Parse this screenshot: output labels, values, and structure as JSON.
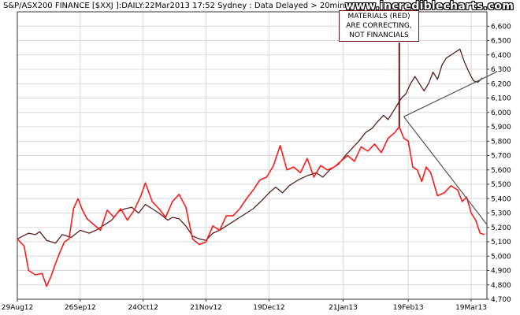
{
  "header": {
    "title": "S&P/ASX200 FINANCE [$XXJ ]:DAILY:22Mar2013 17:52 Sydney : Data Delayed > 20mins",
    "site": "www.incrediblecharts.com"
  },
  "annotation": {
    "lines": [
      "MATERIALS (RED)",
      "ARE CORRECTING,",
      "NOT FINANCIALS"
    ]
  },
  "chart_data": {
    "type": "line",
    "ylim": [
      4700,
      6700
    ],
    "yticks": [
      4700,
      4800,
      4900,
      5000,
      5100,
      5200,
      5300,
      5400,
      5500,
      5600,
      5700,
      5800,
      5900,
      6000,
      6100,
      6200,
      6300,
      6400,
      6500,
      6600
    ],
    "ytick_labels": [
      "4,700",
      "4,800",
      "4,900",
      "5,000",
      "5,100",
      "5,200",
      "5,300",
      "5,400",
      "5,500",
      "5,600",
      "5,700",
      "5,800",
      "5,900",
      "6,000",
      "6,100",
      "6,200",
      "6,300",
      "6,400",
      "6,500",
      "6,600"
    ],
    "xticks": [
      "29Aug12",
      "26Sep12",
      "24Oct12",
      "21Nov12",
      "19Dec12",
      "21Jan13",
      "19Feb13",
      "19Mar13"
    ],
    "xlim": [
      "2012-08-29",
      "2013-03-26"
    ],
    "grid": true,
    "colors": {
      "financials": "#5a2020",
      "materials": "#ff1a1a",
      "trendlines": "#555555",
      "callout_border": "#6b1a1a"
    },
    "series": [
      {
        "key": "financials",
        "points": [
          [
            "2012-08-29",
            5120
          ],
          [
            "2012-09-03",
            5160
          ],
          [
            "2012-09-06",
            5150
          ],
          [
            "2012-09-08",
            5170
          ],
          [
            "2012-09-11",
            5110
          ],
          [
            "2012-09-15",
            5090
          ],
          [
            "2012-09-18",
            5150
          ],
          [
            "2012-09-22",
            5130
          ],
          [
            "2012-09-26",
            5180
          ],
          [
            "2012-09-30",
            5160
          ],
          [
            "2012-10-03",
            5180
          ],
          [
            "2012-10-07",
            5220
          ],
          [
            "2012-10-10",
            5250
          ],
          [
            "2012-10-13",
            5310
          ],
          [
            "2012-10-16",
            5330
          ],
          [
            "2012-10-19",
            5340
          ],
          [
            "2012-10-22",
            5300
          ],
          [
            "2012-10-25",
            5360
          ],
          [
            "2012-10-28",
            5330
          ],
          [
            "2012-10-31",
            5300
          ],
          [
            "2012-11-04",
            5250
          ],
          [
            "2012-11-06",
            5270
          ],
          [
            "2012-11-09",
            5260
          ],
          [
            "2012-11-12",
            5210
          ],
          [
            "2012-11-15",
            5140
          ],
          [
            "2012-11-18",
            5120
          ],
          [
            "2012-11-21",
            5110
          ],
          [
            "2012-11-24",
            5160
          ],
          [
            "2012-11-27",
            5180
          ],
          [
            "2012-11-30",
            5210
          ],
          [
            "2012-12-03",
            5240
          ],
          [
            "2012-12-06",
            5270
          ],
          [
            "2012-12-09",
            5300
          ],
          [
            "2012-12-12",
            5330
          ],
          [
            "2012-12-16",
            5390
          ],
          [
            "2012-12-19",
            5440
          ],
          [
            "2012-12-22",
            5480
          ],
          [
            "2012-12-25",
            5440
          ],
          [
            "2012-12-28",
            5490
          ],
          [
            "2013-01-01",
            5530
          ],
          [
            "2013-01-05",
            5560
          ],
          [
            "2013-01-09",
            5580
          ],
          [
            "2013-01-12",
            5550
          ],
          [
            "2013-01-15",
            5600
          ],
          [
            "2013-01-19",
            5640
          ],
          [
            "2013-01-22",
            5700
          ],
          [
            "2013-01-25",
            5750
          ],
          [
            "2013-01-28",
            5800
          ],
          [
            "2013-01-31",
            5860
          ],
          [
            "2013-02-03",
            5890
          ],
          [
            "2013-02-05",
            5930
          ],
          [
            "2013-02-08",
            5980
          ],
          [
            "2013-02-10",
            5950
          ],
          [
            "2013-02-12",
            6000
          ],
          [
            "2013-02-14",
            6050
          ],
          [
            "2013-02-16",
            6100
          ],
          [
            "2013-02-18",
            6130
          ],
          [
            "2013-02-20",
            6200
          ],
          [
            "2013-02-22",
            6250
          ],
          [
            "2013-02-24",
            6200
          ],
          [
            "2013-02-26",
            6150
          ],
          [
            "2013-02-28",
            6200
          ],
          [
            "2013-03-02",
            6280
          ],
          [
            "2013-03-04",
            6230
          ],
          [
            "2013-03-06",
            6330
          ],
          [
            "2013-03-08",
            6380
          ],
          [
            "2013-03-10",
            6400
          ],
          [
            "2013-03-12",
            6420
          ],
          [
            "2013-03-14",
            6440
          ],
          [
            "2013-03-16",
            6350
          ],
          [
            "2013-03-18",
            6280
          ],
          [
            "2013-03-20",
            6220
          ],
          [
            "2013-03-22",
            6210
          ],
          [
            "2013-03-24",
            6240
          ]
        ]
      },
      {
        "key": "materials",
        "points": [
          [
            "2012-08-29",
            5120
          ],
          [
            "2012-09-01",
            5070
          ],
          [
            "2012-09-03",
            4900
          ],
          [
            "2012-09-06",
            4870
          ],
          [
            "2012-09-09",
            4880
          ],
          [
            "2012-09-11",
            4790
          ],
          [
            "2012-09-13",
            4860
          ],
          [
            "2012-09-15",
            4950
          ],
          [
            "2012-09-17",
            5030
          ],
          [
            "2012-09-19",
            5100
          ],
          [
            "2012-09-21",
            5120
          ],
          [
            "2012-09-23",
            5330
          ],
          [
            "2012-09-25",
            5400
          ],
          [
            "2012-09-27",
            5320
          ],
          [
            "2012-09-29",
            5260
          ],
          [
            "2012-10-02",
            5220
          ],
          [
            "2012-10-05",
            5180
          ],
          [
            "2012-10-08",
            5320
          ],
          [
            "2012-10-11",
            5270
          ],
          [
            "2012-10-14",
            5330
          ],
          [
            "2012-10-17",
            5250
          ],
          [
            "2012-10-20",
            5320
          ],
          [
            "2012-10-23",
            5420
          ],
          [
            "2012-10-25",
            5510
          ],
          [
            "2012-10-28",
            5380
          ],
          [
            "2012-10-31",
            5330
          ],
          [
            "2012-11-03",
            5270
          ],
          [
            "2012-11-06",
            5380
          ],
          [
            "2012-11-09",
            5430
          ],
          [
            "2012-11-12",
            5340
          ],
          [
            "2012-11-15",
            5120
          ],
          [
            "2012-11-18",
            5080
          ],
          [
            "2012-11-21",
            5100
          ],
          [
            "2012-11-24",
            5210
          ],
          [
            "2012-11-27",
            5180
          ],
          [
            "2012-11-30",
            5280
          ],
          [
            "2012-12-03",
            5280
          ],
          [
            "2012-12-06",
            5330
          ],
          [
            "2012-12-09",
            5400
          ],
          [
            "2012-12-12",
            5460
          ],
          [
            "2012-12-15",
            5530
          ],
          [
            "2012-12-18",
            5550
          ],
          [
            "2012-12-21",
            5630
          ],
          [
            "2012-12-24",
            5770
          ],
          [
            "2012-12-27",
            5600
          ],
          [
            "2012-12-30",
            5620
          ],
          [
            "2013-01-02",
            5580
          ],
          [
            "2013-01-05",
            5680
          ],
          [
            "2013-01-08",
            5550
          ],
          [
            "2013-01-11",
            5630
          ],
          [
            "2013-01-14",
            5600
          ],
          [
            "2013-01-17",
            5620
          ],
          [
            "2013-01-20",
            5660
          ],
          [
            "2013-01-23",
            5700
          ],
          [
            "2013-01-26",
            5660
          ],
          [
            "2013-01-29",
            5760
          ],
          [
            "2013-02-01",
            5730
          ],
          [
            "2013-02-04",
            5780
          ],
          [
            "2013-02-07",
            5720
          ],
          [
            "2013-02-10",
            5820
          ],
          [
            "2013-02-13",
            5860
          ],
          [
            "2013-02-15",
            5900
          ],
          [
            "2013-02-17",
            5820
          ],
          [
            "2013-02-19",
            5800
          ],
          [
            "2013-02-21",
            5620
          ],
          [
            "2013-02-23",
            5600
          ],
          [
            "2013-02-25",
            5520
          ],
          [
            "2013-02-27",
            5620
          ],
          [
            "2013-03-01",
            5580
          ],
          [
            "2013-03-04",
            5420
          ],
          [
            "2013-03-07",
            5440
          ],
          [
            "2013-03-10",
            5490
          ],
          [
            "2013-03-13",
            5460
          ],
          [
            "2013-03-15",
            5380
          ],
          [
            "2013-03-17",
            5410
          ],
          [
            "2013-03-19",
            5300
          ],
          [
            "2013-03-21",
            5250
          ],
          [
            "2013-03-23",
            5160
          ],
          [
            "2013-03-25",
            5150
          ]
        ]
      }
    ],
    "trendlines": [
      {
        "from": [
          "2013-02-17",
          5970
        ],
        "to": [
          "2013-03-30",
          6280
        ]
      },
      {
        "from": [
          "2013-02-17",
          5970
        ],
        "to": [
          "2013-03-26",
          5220
        ]
      }
    ]
  }
}
